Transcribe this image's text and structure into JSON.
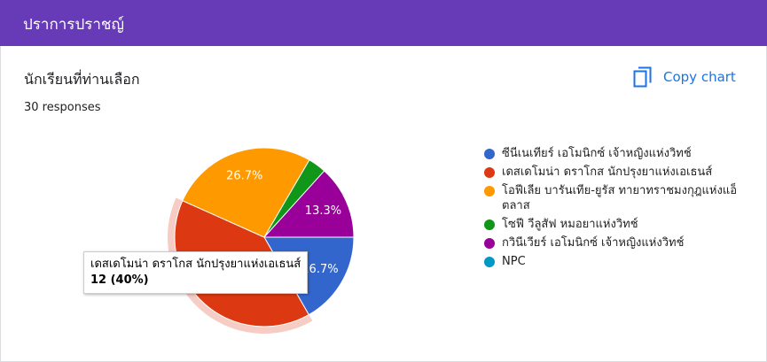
{
  "header": {
    "title": "ปราการปราชญ์"
  },
  "copy_button": "Copy chart",
  "tooltip": "12 (40%)",
  "chart_data": {
    "type": "pie",
    "title": "นักเรียนที่ท่านเลือก",
    "subtitle": "30 responses",
    "categories": [
      "ซีนีเนเทียร์ เอโมนิกซ์ เจ้าหญิงแห่งวิทช์",
      "เดสเดโมน่า ดราโกส นักปรุงยาแห่งเอเธนส์",
      "โอฟีเลีย บารันเทีย-ยูรัส ทายาทราชมงกุฎแห่งแอ็ตลาส",
      "โซฟี วีลูสัฟ หมอยาแห่งวิทช์",
      "กวินีเวียร์ เอโมนิกซ์ เจ้าหญิงแห่งวิทช์",
      "NPC"
    ],
    "values": [
      16.7,
      40,
      26.7,
      3.3,
      13.3,
      0
    ],
    "value_labels": [
      "16.7%",
      null,
      "26.7%",
      null,
      "13.3%",
      null
    ],
    "colors": [
      "#3366cc",
      "#dc3912",
      "#ff9900",
      "#109618",
      "#990099",
      "#0099c6"
    ]
  }
}
